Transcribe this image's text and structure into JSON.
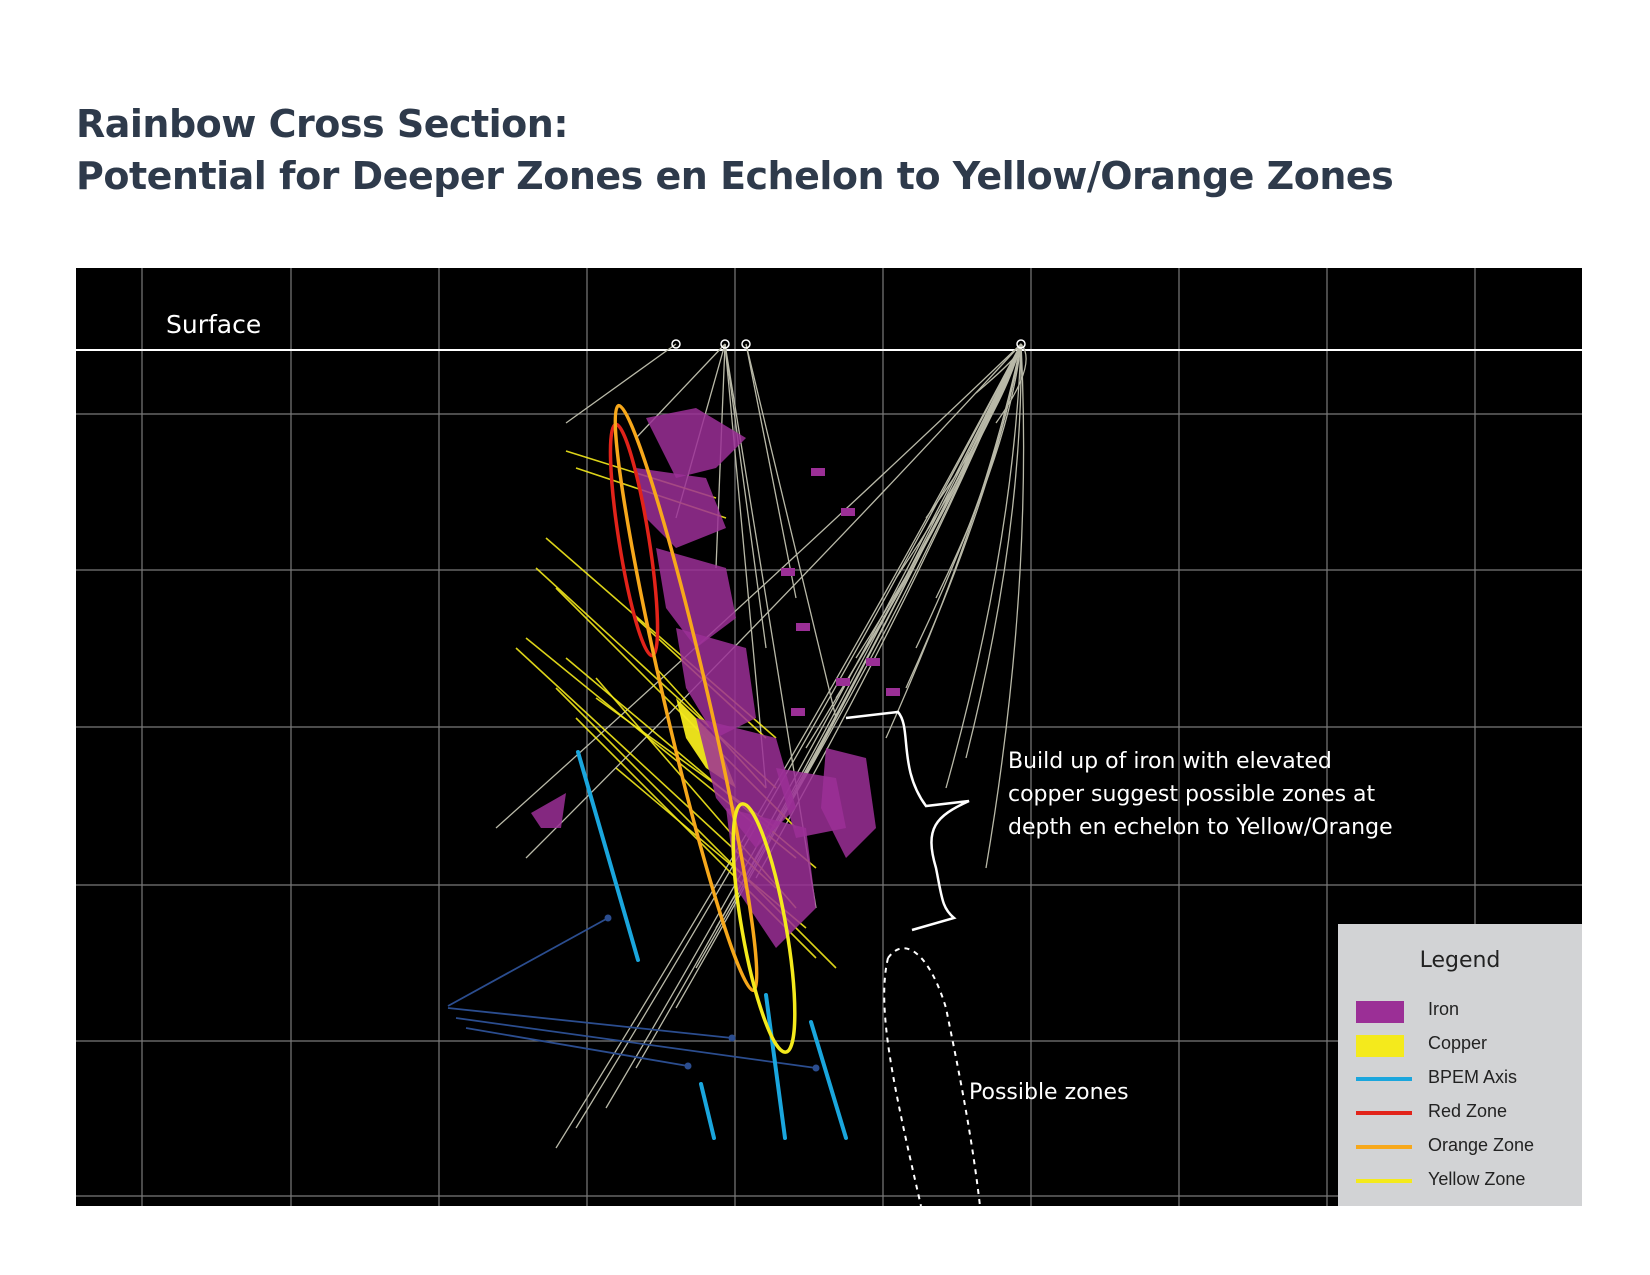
{
  "title": {
    "line1": "Rainbow Cross Section:",
    "line2": "Potential for Deeper Zones en Echelon to Yellow/Orange Zones"
  },
  "section": {
    "surface_label": "Surface",
    "annotation_lines": [
      "Build up of iron with elevated",
      "copper suggest possible zones at",
      "depth en echelon to Yellow/Orange"
    ],
    "possible_zones_label": "Possible zones"
  },
  "legend": {
    "title": "Legend",
    "items": [
      {
        "label": "Iron",
        "color": "#9b2f96",
        "kind": "swatch"
      },
      {
        "label": "Copper",
        "color": "#f4ea1c",
        "kind": "swatch"
      },
      {
        "label": "BPEM Axis",
        "color": "#1aa6dd",
        "kind": "line"
      },
      {
        "label": "Red Zone",
        "color": "#e2231a",
        "kind": "line"
      },
      {
        "label": "Orange Zone",
        "color": "#f7a81b",
        "kind": "line"
      },
      {
        "label": "Yellow Zone",
        "color": "#f4ea1c",
        "kind": "line"
      }
    ]
  },
  "colors": {
    "iron": "#9b2f96",
    "copper": "#f4ea1c",
    "bpem": "#1aa6dd",
    "red_zone": "#e2231a",
    "orange_zone": "#f7a81b",
    "yellow_zone": "#f4ea1c",
    "drill_trace": "#b9b9a8",
    "grid": "#7a7a7a",
    "arrow": "#2b4d8f"
  }
}
